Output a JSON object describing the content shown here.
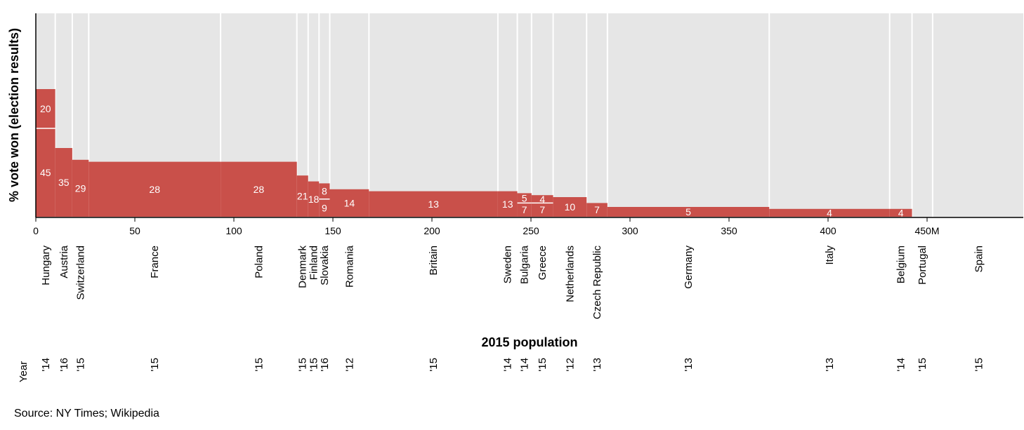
{
  "chart_data": {
    "type": "bar",
    "xlabel": "2015 population",
    "ylabel": "% vote won (election results)",
    "year_axis_label": "Year",
    "x_ticks": [
      "0",
      "50",
      "100",
      "150",
      "200",
      "250",
      "300",
      "350",
      "400",
      "450M"
    ],
    "x_tick_values": [
      0,
      50,
      100,
      150,
      200,
      250,
      300,
      350,
      400,
      450
    ],
    "xlim": [
      0,
      500
    ],
    "ylim": [
      0,
      100
    ],
    "colors": {
      "bar": "#c9504a",
      "panel": "#e6e6e6",
      "grid": "#ffffff"
    },
    "countries": [
      {
        "name": "Hungary",
        "year": "'14",
        "pop": 9.8,
        "parties": [
          45,
          20
        ]
      },
      {
        "name": "Austria",
        "year": "'16",
        "pop": 8.6,
        "parties": [
          35
        ]
      },
      {
        "name": "Switzerland",
        "year": "'15",
        "pop": 8.3,
        "parties": [
          29
        ]
      },
      {
        "name": "France",
        "year": "'15",
        "pop": 66.6,
        "parties": [
          28
        ]
      },
      {
        "name": "Poland",
        "year": "'15",
        "pop": 38.5,
        "parties": [
          28
        ]
      },
      {
        "name": "Denmark",
        "year": "'15",
        "pop": 5.7,
        "parties": [
          21
        ]
      },
      {
        "name": "Finland",
        "year": "'15",
        "pop": 5.5,
        "parties": [
          18
        ]
      },
      {
        "name": "Slovakia",
        "year": "'16",
        "pop": 5.4,
        "parties": [
          9,
          8
        ]
      },
      {
        "name": "Romania",
        "year": "'12",
        "pop": 19.8,
        "parties": [
          14
        ]
      },
      {
        "name": "Britain",
        "year": "'15",
        "pop": 65.1,
        "parties": [
          13
        ]
      },
      {
        "name": "Sweden",
        "year": "'14",
        "pop": 9.8,
        "parties": [
          13
        ]
      },
      {
        "name": "Bulgaria",
        "year": "'14",
        "pop": 7.2,
        "parties": [
          7,
          5
        ]
      },
      {
        "name": "Greece",
        "year": "'15",
        "pop": 10.9,
        "parties": [
          7,
          4
        ]
      },
      {
        "name": "Netherlands",
        "year": "'12",
        "pop": 16.9,
        "parties": [
          10
        ]
      },
      {
        "name": "Czech Republic",
        "year": "'13",
        "pop": 10.5,
        "parties": [
          7
        ]
      },
      {
        "name": "Germany",
        "year": "'13",
        "pop": 81.7,
        "parties": [
          5
        ]
      },
      {
        "name": "Italy",
        "year": "'13",
        "pop": 60.8,
        "parties": [
          4
        ]
      },
      {
        "name": "Belgium",
        "year": "'14",
        "pop": 11.3,
        "parties": [
          4
        ]
      },
      {
        "name": "Portugal",
        "year": "'15",
        "pop": 10.4,
        "parties": []
      },
      {
        "name": "Spain",
        "year": "'15",
        "pop": 46.4,
        "parties": []
      }
    ]
  },
  "source": "Source: NY Times; Wikipedia"
}
